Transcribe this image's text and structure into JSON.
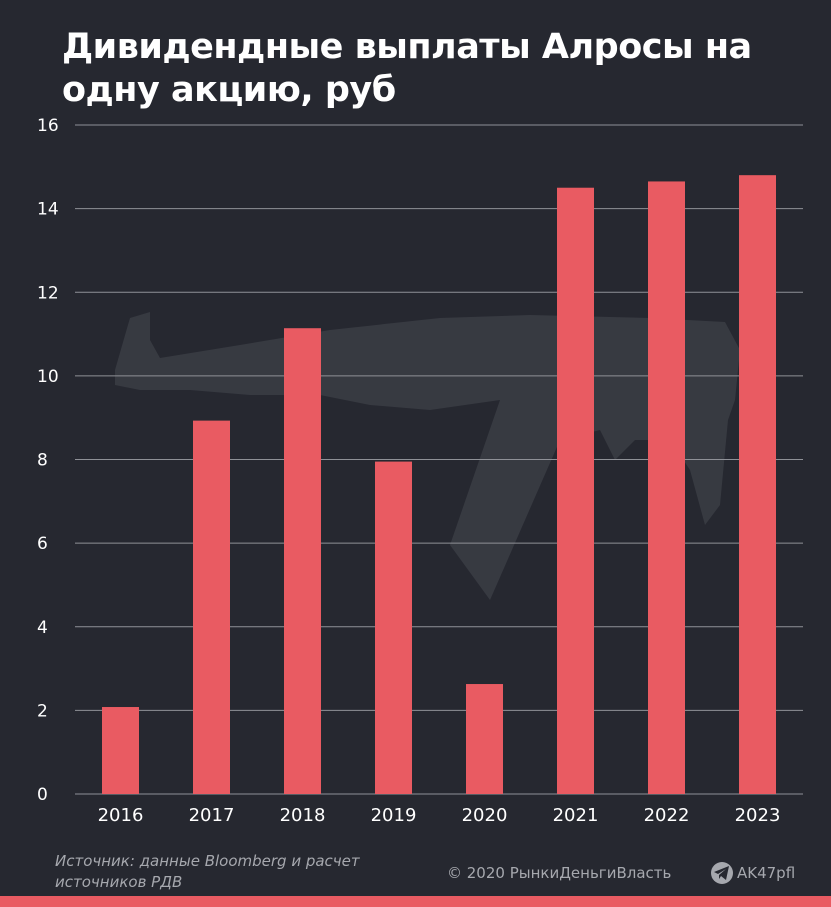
{
  "title": "Дивидендные выплаты Алросы на одну акцию, руб",
  "colors": {
    "background": "#262830",
    "bar": "#e95b62",
    "grid": "#8f9197",
    "text": "#ffffff",
    "muted": "#a6a8ae"
  },
  "chart_data": {
    "type": "bar",
    "title": "Дивидендные выплаты Алросы на одну акцию, руб",
    "categories": [
      "2016",
      "2017",
      "2018",
      "2019",
      "2020",
      "2021",
      "2022",
      "2023"
    ],
    "values": [
      2.08,
      8.93,
      11.14,
      7.95,
      2.63,
      14.5,
      14.65,
      14.8
    ],
    "ylim": [
      0,
      16
    ],
    "yticks": [
      0,
      2,
      4,
      6,
      8,
      10,
      12,
      14,
      16
    ],
    "ytick_labels": [
      "0",
      "2",
      "4",
      "6",
      "8",
      "10",
      "12",
      "14",
      "16"
    ],
    "xlabel": "",
    "ylabel": "",
    "grid": true,
    "legend": "none"
  },
  "footer": {
    "source_line1": "Источник: данные Bloomberg и расчет",
    "source_line2": "источников РДВ",
    "copyright": "© 2020  РынкиДеньгиВласть",
    "brand_icon": "telegram-icon",
    "brand": "AK47pfl"
  },
  "watermark_icon": "rifle-silhouette-icon"
}
